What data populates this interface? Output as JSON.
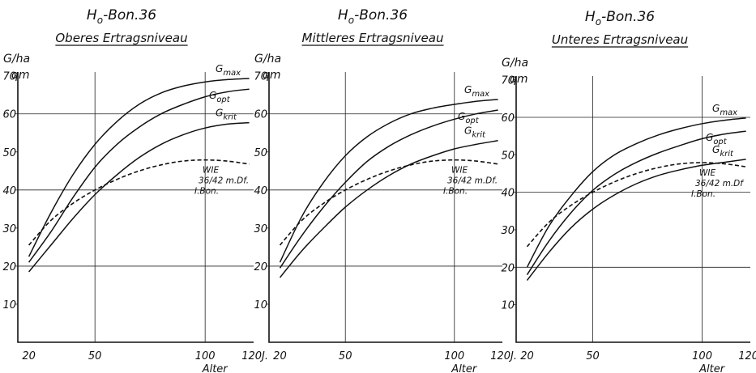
{
  "chart_data": [
    {
      "type": "line",
      "title": "Ho-Bon.36",
      "subtitle": "Oberes Ertragsniveau",
      "ylabel": "G/ha",
      "ylabel_unit": "qm",
      "xlabel": "Alter",
      "x_ticks": [
        "20",
        "50",
        "100",
        "120J."
      ],
      "y_ticks": [
        "10",
        "20",
        "30",
        "40",
        "50",
        "60",
        "70"
      ],
      "xlim": [
        15,
        122
      ],
      "ylim": [
        0,
        71
      ],
      "grid": true,
      "series": [
        {
          "name": "Gmax",
          "style": "solid",
          "x": [
            20,
            30,
            40,
            50,
            60,
            70,
            80,
            90,
            100,
            110,
            120
          ],
          "y": [
            22.5,
            34,
            44,
            52,
            58,
            62.5,
            65.5,
            67.3,
            68.4,
            69,
            69.3
          ]
        },
        {
          "name": "Gopt",
          "style": "solid",
          "x": [
            20,
            30,
            40,
            50,
            60,
            70,
            80,
            90,
            100,
            110,
            120
          ],
          "y": [
            21,
            29,
            38,
            46,
            52,
            56.5,
            60,
            62.5,
            64.5,
            65.8,
            66.5
          ]
        },
        {
          "name": "Gkrit",
          "style": "solid",
          "x": [
            20,
            30,
            40,
            50,
            60,
            70,
            80,
            90,
            100,
            110,
            120
          ],
          "y": [
            18.5,
            25.5,
            32.5,
            38.8,
            44,
            48.5,
            52,
            54.5,
            56.3,
            57.3,
            57.7
          ]
        },
        {
          "name": "WIE 36/42 m.Df. I.Bon.",
          "style": "dashed",
          "x": [
            20,
            30,
            40,
            50,
            60,
            70,
            80,
            90,
            100,
            110,
            120
          ],
          "y": [
            25.5,
            32,
            36.5,
            40,
            42.8,
            45,
            46.6,
            47.6,
            47.9,
            47.6,
            46.8
          ]
        }
      ],
      "labels": {
        "gmax": "max",
        "gopt": "opt",
        "gkrit": "krit",
        "wie": [
          "WIE",
          "36/42 m.Df.",
          "I.Bon."
        ]
      }
    },
    {
      "type": "line",
      "title": "Ho-Bon.36",
      "subtitle": "Mittleres Ertragsniveau",
      "ylabel": "G/ha",
      "ylabel_unit": "qm",
      "xlabel": "Alter",
      "x_ticks": [
        "20",
        "50",
        "100",
        "120J."
      ],
      "y_ticks": [
        "10",
        "20",
        "30",
        "40",
        "50",
        "60",
        "70"
      ],
      "xlim": [
        15,
        122
      ],
      "ylim": [
        0,
        71
      ],
      "grid": true,
      "series": [
        {
          "name": "Gmax",
          "style": "solid",
          "x": [
            20,
            30,
            40,
            50,
            60,
            70,
            80,
            90,
            100,
            110,
            120
          ],
          "y": [
            21,
            33,
            42,
            49,
            54,
            57.5,
            60,
            61.5,
            62.5,
            63.3,
            63.8
          ]
        },
        {
          "name": "Gopt",
          "style": "solid",
          "x": [
            20,
            30,
            40,
            50,
            60,
            70,
            80,
            90,
            100,
            110,
            120
          ],
          "y": [
            19.5,
            28,
            35.5,
            42,
            47.5,
            51.5,
            54.5,
            56.8,
            58.6,
            60,
            61
          ]
        },
        {
          "name": "Gkrit",
          "style": "solid",
          "x": [
            20,
            30,
            40,
            50,
            60,
            70,
            80,
            90,
            100,
            110,
            120
          ],
          "y": [
            17,
            24,
            30,
            35.5,
            40,
            43.8,
            46.8,
            49,
            50.8,
            52,
            53
          ]
        },
        {
          "name": "WIE 36/42 m.Df. I.Bon.",
          "style": "dashed",
          "x": [
            20,
            30,
            40,
            50,
            60,
            70,
            80,
            90,
            100,
            110,
            120
          ],
          "y": [
            25.5,
            32,
            36.5,
            40,
            42.8,
            45,
            46.6,
            47.6,
            47.9,
            47.6,
            46.8
          ]
        }
      ],
      "labels": {
        "gmax": "max",
        "gopt": "opt",
        "gkrit": "krit",
        "wie": [
          "WIE",
          "36/42 m.Df.",
          "I.Bon."
        ]
      }
    },
    {
      "type": "line",
      "title": "Ho-Bon.36",
      "subtitle": "Unteres Ertragsniveau",
      "ylabel": "G/ha",
      "ylabel_unit": "qm",
      "xlabel": "Alter",
      "x_ticks": [
        "20",
        "50",
        "100",
        "120J."
      ],
      "y_ticks": [
        "10",
        "20",
        "30",
        "40",
        "50",
        "60",
        "70"
      ],
      "xlim": [
        15,
        122
      ],
      "ylim": [
        0,
        71
      ],
      "grid": true,
      "series": [
        {
          "name": "Gmax",
          "style": "solid",
          "x": [
            20,
            30,
            40,
            50,
            60,
            70,
            80,
            90,
            100,
            110,
            120
          ],
          "y": [
            20,
            31,
            39,
            45.5,
            50,
            53,
            55.3,
            57,
            58.3,
            59.2,
            59.8
          ]
        },
        {
          "name": "Gopt",
          "style": "solid",
          "x": [
            20,
            30,
            40,
            50,
            60,
            70,
            80,
            90,
            100,
            110,
            120
          ],
          "y": [
            18,
            27,
            34.5,
            40.5,
            44.8,
            48,
            50.5,
            52.5,
            54.3,
            55.5,
            56.3
          ]
        },
        {
          "name": "Gkrit",
          "style": "solid",
          "x": [
            20,
            30,
            40,
            50,
            60,
            70,
            80,
            90,
            100,
            110,
            120
          ],
          "y": [
            16.5,
            24,
            30.5,
            35.5,
            39.3,
            42.3,
            44.5,
            46,
            47.2,
            48,
            48.8
          ]
        },
        {
          "name": "WIE 36/42 m.Df. I.Bon.",
          "style": "dashed",
          "x": [
            20,
            30,
            40,
            50,
            60,
            70,
            80,
            90,
            100,
            110,
            120
          ],
          "y": [
            25.5,
            32,
            36.5,
            40,
            42.8,
            45,
            46.6,
            47.6,
            47.9,
            47.6,
            46.8
          ]
        }
      ],
      "labels": {
        "gmax": "max",
        "gopt": "opt",
        "gkrit": "krit",
        "wie": [
          "WIE",
          "36/42 m.Df",
          "I.Bon."
        ]
      }
    }
  ]
}
